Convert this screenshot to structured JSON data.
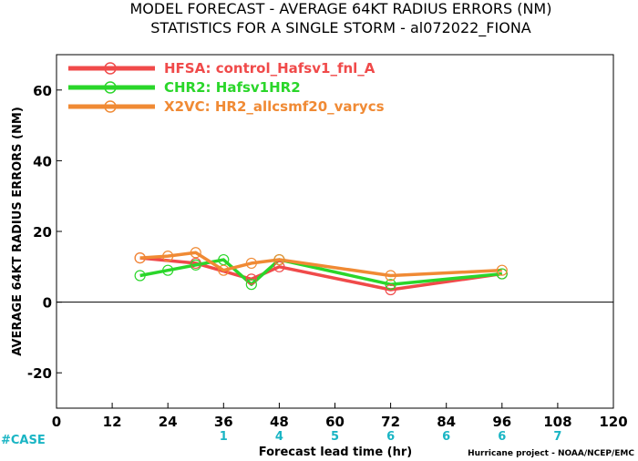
{
  "chart_data": {
    "type": "line",
    "title": "MODEL FORECAST - AVERAGE 64KT RADIUS ERRORS (NM)",
    "subtitle": "STATISTICS FOR A SINGLE STORM - al072022_FIONA",
    "xlabel": "Forecast lead time (hr)",
    "ylabel": "AVERAGE 64KT RADIUS ERRORS (NM)",
    "xlim": [
      0,
      120
    ],
    "ylim": [
      -30,
      70
    ],
    "xticks": [
      0,
      12,
      24,
      36,
      48,
      60,
      72,
      84,
      96,
      108,
      120
    ],
    "yticks": [
      -20,
      0,
      20,
      40,
      60
    ],
    "zero_line": true,
    "grid": false,
    "legend_position": "top-left",
    "case_label": "#CASE",
    "case_counts": [
      {
        "x": 36,
        "count": "1"
      },
      {
        "x": 48,
        "count": "4"
      },
      {
        "x": 60,
        "count": "5"
      },
      {
        "x": 72,
        "count": "6"
      },
      {
        "x": 84,
        "count": "6"
      },
      {
        "x": 96,
        "count": "6"
      },
      {
        "x": 108,
        "count": "7"
      }
    ],
    "series": [
      {
        "name": "HFSA: control_Hafsv1_fnl_A",
        "color": "#f04a4a",
        "x": [
          18,
          30,
          42,
          48,
          72,
          96
        ],
        "y": [
          12.5,
          11.0,
          6.5,
          10.0,
          3.5,
          8.0
        ]
      },
      {
        "name": "CHR2: Hafsv1HR2",
        "color": "#2ad62a",
        "x": [
          18,
          24,
          30,
          36,
          42,
          48,
          72,
          96
        ],
        "y": [
          7.5,
          9.0,
          10.5,
          12.0,
          5.0,
          12.0,
          5.0,
          8.0
        ]
      },
      {
        "name": "X2VC: HR2_allcsmf20_varycs",
        "color": "#f08a34",
        "x": [
          18,
          24,
          30,
          36,
          42,
          48,
          72,
          96
        ],
        "y": [
          12.5,
          13.0,
          14.0,
          9.0,
          11.0,
          12.0,
          7.5,
          9.0
        ]
      }
    ]
  },
  "credit": "Hurricane project - NOAA/NCEP/EMC"
}
